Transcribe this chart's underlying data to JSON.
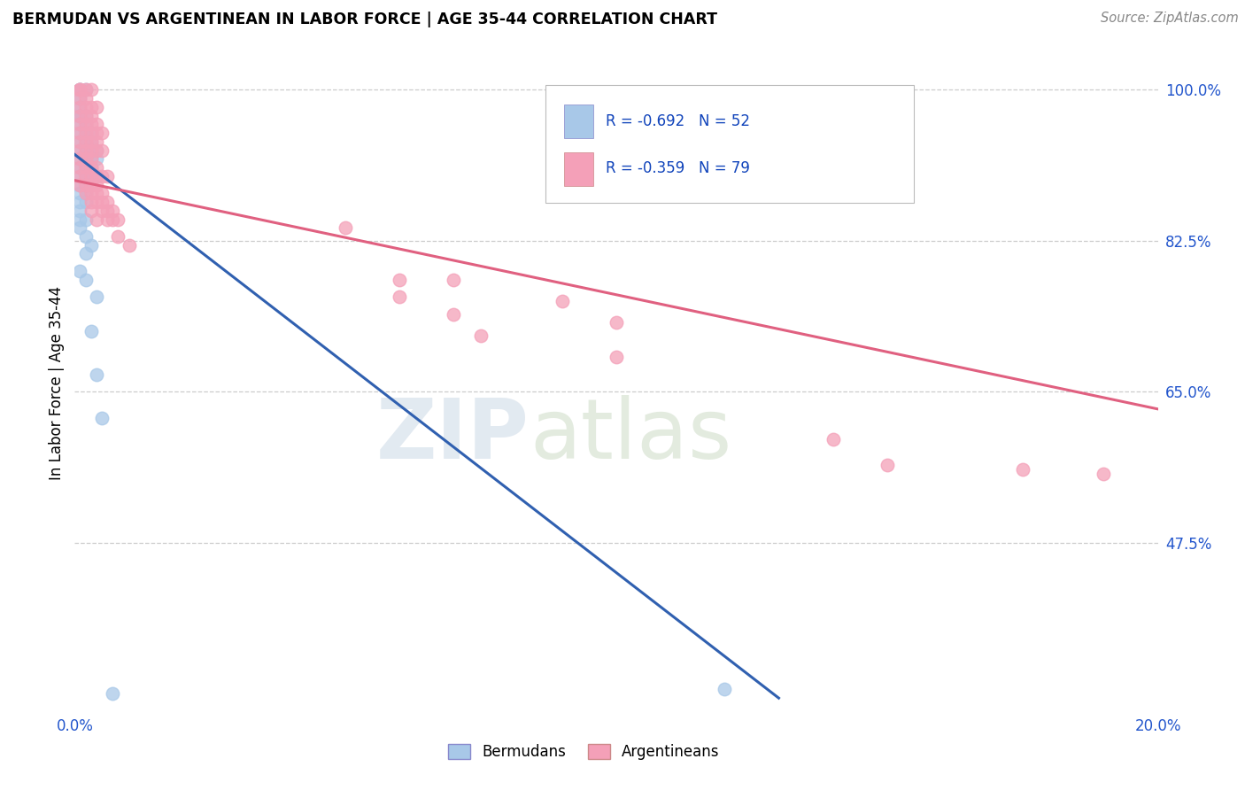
{
  "title": "BERMUDAN VS ARGENTINEAN IN LABOR FORCE | AGE 35-44 CORRELATION CHART",
  "source": "Source: ZipAtlas.com",
  "ylabel": "In Labor Force | Age 35-44",
  "xlim": [
    0.0,
    0.2
  ],
  "ylim": [
    0.28,
    1.04
  ],
  "yticks": [
    0.475,
    0.65,
    0.825,
    1.0
  ],
  "ytick_labels": [
    "47.5%",
    "65.0%",
    "82.5%",
    "100.0%"
  ],
  "xticks": [
    0.0,
    0.05,
    0.1,
    0.15,
    0.2
  ],
  "xtick_labels": [
    "0.0%",
    "",
    "",
    "",
    "20.0%"
  ],
  "bermudan_color": "#a8c8e8",
  "argentinean_color": "#f4a0b8",
  "bermudan_line_color": "#3060b0",
  "argentinean_line_color": "#e06080",
  "R_bermudan": -0.692,
  "N_bermudan": 52,
  "R_argentinean": -0.359,
  "N_argentinean": 79,
  "legend_label_1": "Bermudans",
  "legend_label_2": "Argentineans",
  "watermark_zip": "ZIP",
  "watermark_atlas": "atlas",
  "bermudan_line_x": [
    0.0,
    0.13
  ],
  "bermudan_line_y": [
    0.925,
    0.295
  ],
  "argentinean_line_x": [
    0.0,
    0.2
  ],
  "argentinean_line_y": [
    0.895,
    0.63
  ],
  "bermudan_points": [
    [
      0.001,
      1.0
    ],
    [
      0.001,
      1.0
    ],
    [
      0.001,
      0.99
    ],
    [
      0.002,
      1.0
    ],
    [
      0.001,
      0.98
    ],
    [
      0.001,
      0.97
    ],
    [
      0.001,
      0.97
    ],
    [
      0.001,
      0.96
    ],
    [
      0.002,
      0.97
    ],
    [
      0.002,
      0.96
    ],
    [
      0.001,
      0.95
    ],
    [
      0.001,
      0.94
    ],
    [
      0.002,
      0.95
    ],
    [
      0.002,
      0.94
    ],
    [
      0.003,
      0.95
    ],
    [
      0.003,
      0.94
    ],
    [
      0.001,
      0.93
    ],
    [
      0.002,
      0.93
    ],
    [
      0.003,
      0.93
    ],
    [
      0.004,
      0.93
    ],
    [
      0.001,
      0.92
    ],
    [
      0.002,
      0.92
    ],
    [
      0.003,
      0.92
    ],
    [
      0.004,
      0.92
    ],
    [
      0.001,
      0.91
    ],
    [
      0.002,
      0.91
    ],
    [
      0.003,
      0.91
    ],
    [
      0.001,
      0.9
    ],
    [
      0.002,
      0.9
    ],
    [
      0.003,
      0.9
    ],
    [
      0.004,
      0.9
    ],
    [
      0.001,
      0.89
    ],
    [
      0.002,
      0.89
    ],
    [
      0.001,
      0.88
    ],
    [
      0.002,
      0.88
    ],
    [
      0.001,
      0.87
    ],
    [
      0.002,
      0.87
    ],
    [
      0.001,
      0.86
    ],
    [
      0.001,
      0.85
    ],
    [
      0.002,
      0.85
    ],
    [
      0.001,
      0.84
    ],
    [
      0.002,
      0.83
    ],
    [
      0.003,
      0.82
    ],
    [
      0.002,
      0.81
    ],
    [
      0.001,
      0.79
    ],
    [
      0.002,
      0.78
    ],
    [
      0.004,
      0.76
    ],
    [
      0.003,
      0.72
    ],
    [
      0.004,
      0.67
    ],
    [
      0.005,
      0.62
    ],
    [
      0.007,
      0.3
    ],
    [
      0.12,
      0.305
    ]
  ],
  "argentinean_points": [
    [
      0.001,
      1.0
    ],
    [
      0.001,
      1.0
    ],
    [
      0.002,
      1.0
    ],
    [
      0.003,
      1.0
    ],
    [
      0.001,
      0.99
    ],
    [
      0.002,
      0.99
    ],
    [
      0.001,
      0.98
    ],
    [
      0.002,
      0.98
    ],
    [
      0.003,
      0.98
    ],
    [
      0.004,
      0.98
    ],
    [
      0.001,
      0.97
    ],
    [
      0.002,
      0.97
    ],
    [
      0.003,
      0.97
    ],
    [
      0.001,
      0.96
    ],
    [
      0.002,
      0.96
    ],
    [
      0.003,
      0.96
    ],
    [
      0.004,
      0.96
    ],
    [
      0.001,
      0.95
    ],
    [
      0.002,
      0.95
    ],
    [
      0.003,
      0.95
    ],
    [
      0.004,
      0.95
    ],
    [
      0.005,
      0.95
    ],
    [
      0.001,
      0.94
    ],
    [
      0.002,
      0.94
    ],
    [
      0.003,
      0.94
    ],
    [
      0.004,
      0.94
    ],
    [
      0.001,
      0.93
    ],
    [
      0.002,
      0.93
    ],
    [
      0.003,
      0.93
    ],
    [
      0.004,
      0.93
    ],
    [
      0.005,
      0.93
    ],
    [
      0.001,
      0.92
    ],
    [
      0.002,
      0.92
    ],
    [
      0.003,
      0.92
    ],
    [
      0.001,
      0.91
    ],
    [
      0.002,
      0.91
    ],
    [
      0.003,
      0.91
    ],
    [
      0.004,
      0.91
    ],
    [
      0.001,
      0.9
    ],
    [
      0.002,
      0.9
    ],
    [
      0.003,
      0.9
    ],
    [
      0.004,
      0.9
    ],
    [
      0.005,
      0.9
    ],
    [
      0.006,
      0.9
    ],
    [
      0.001,
      0.89
    ],
    [
      0.002,
      0.89
    ],
    [
      0.003,
      0.89
    ],
    [
      0.004,
      0.89
    ],
    [
      0.002,
      0.88
    ],
    [
      0.003,
      0.88
    ],
    [
      0.004,
      0.88
    ],
    [
      0.005,
      0.88
    ],
    [
      0.003,
      0.87
    ],
    [
      0.004,
      0.87
    ],
    [
      0.005,
      0.87
    ],
    [
      0.006,
      0.87
    ],
    [
      0.003,
      0.86
    ],
    [
      0.005,
      0.86
    ],
    [
      0.006,
      0.86
    ],
    [
      0.007,
      0.86
    ],
    [
      0.004,
      0.85
    ],
    [
      0.006,
      0.85
    ],
    [
      0.007,
      0.85
    ],
    [
      0.008,
      0.85
    ],
    [
      0.05,
      0.84
    ],
    [
      0.008,
      0.83
    ],
    [
      0.01,
      0.82
    ],
    [
      0.06,
      0.78
    ],
    [
      0.07,
      0.78
    ],
    [
      0.06,
      0.76
    ],
    [
      0.09,
      0.755
    ],
    [
      0.07,
      0.74
    ],
    [
      0.1,
      0.73
    ],
    [
      0.075,
      0.715
    ],
    [
      0.1,
      0.69
    ],
    [
      0.14,
      0.595
    ],
    [
      0.15,
      0.565
    ],
    [
      0.175,
      0.56
    ],
    [
      0.19,
      0.555
    ]
  ]
}
